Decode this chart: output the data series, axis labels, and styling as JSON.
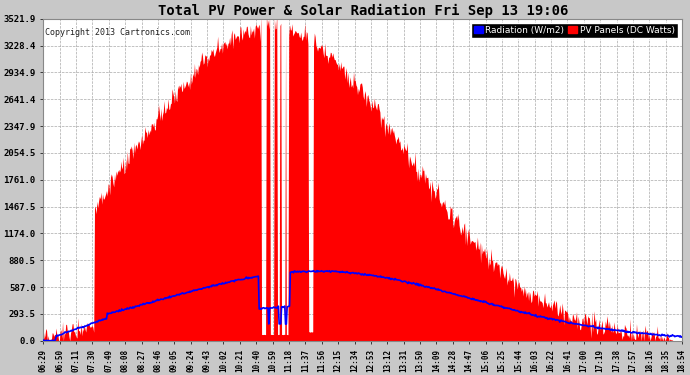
{
  "title": "Total PV Power & Solar Radiation Fri Sep 13 19:06",
  "copyright": "Copyright 2013 Cartronics.com",
  "legend_radiation": "Radiation (W/m2)",
  "legend_pv": "PV Panels (DC Watts)",
  "legend_radiation_color": "#0000ff",
  "legend_pv_color": "#ff0000",
  "legend_bg": "#000000",
  "yticks": [
    0.0,
    293.5,
    587.0,
    880.5,
    1174.0,
    1467.5,
    1761.0,
    2054.5,
    2347.9,
    2641.4,
    2934.9,
    3228.4,
    3521.9
  ],
  "ymax": 3521.9,
  "background_color": "#c8c8c8",
  "plot_bg": "#ffffff",
  "red_fill": "#ff0000",
  "blue_line": "#0000ff",
  "title_color": "#000000",
  "x_labels": [
    "06:29",
    "06:50",
    "07:11",
    "07:30",
    "07:49",
    "08:08",
    "08:27",
    "08:46",
    "09:05",
    "09:24",
    "09:43",
    "10:02",
    "10:21",
    "10:40",
    "10:59",
    "11:18",
    "11:37",
    "11:56",
    "12:15",
    "12:34",
    "12:53",
    "13:12",
    "13:31",
    "13:50",
    "14:09",
    "14:28",
    "14:47",
    "15:06",
    "15:25",
    "15:44",
    "16:03",
    "16:22",
    "16:41",
    "17:00",
    "17:19",
    "17:38",
    "17:57",
    "18:16",
    "18:35",
    "18:54"
  ],
  "n_points": 800
}
